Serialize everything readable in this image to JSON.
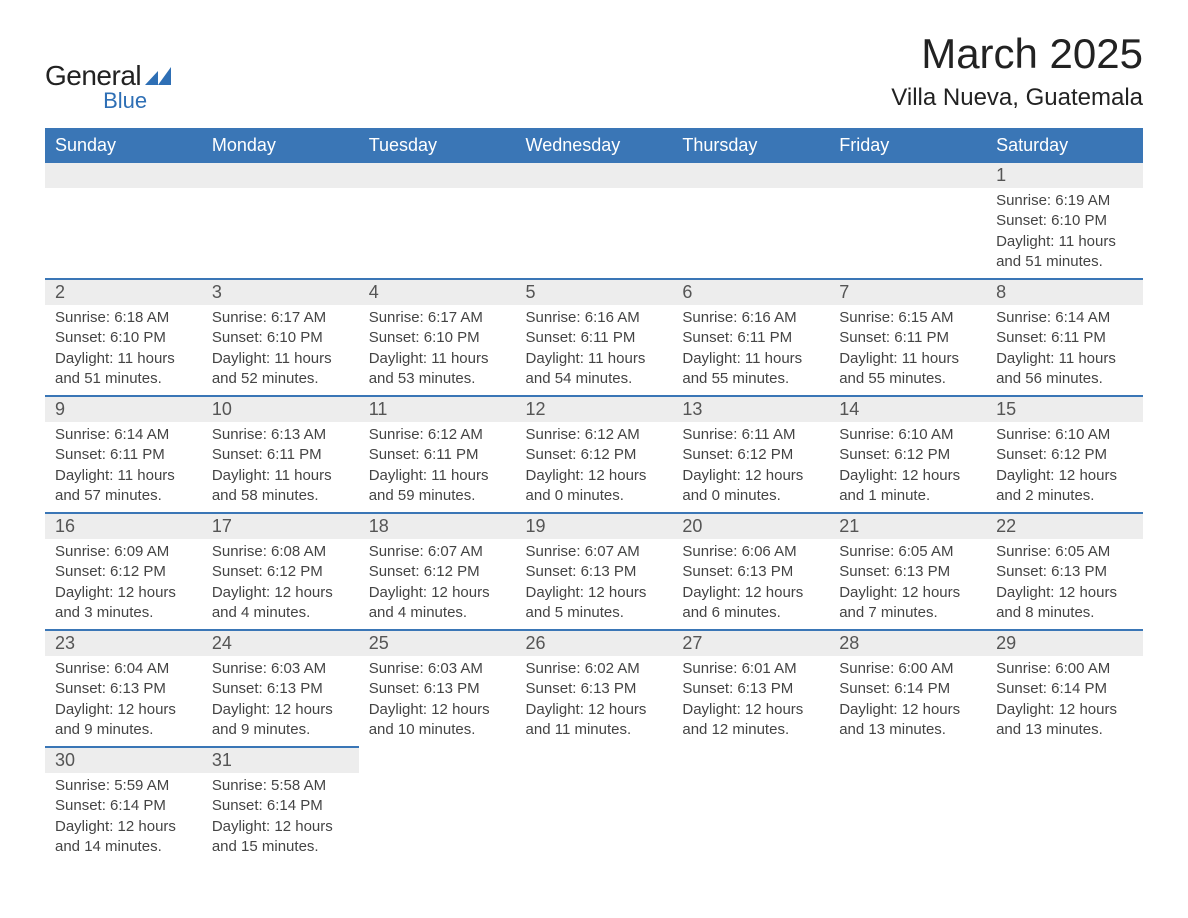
{
  "logo": {
    "text_general": "General",
    "text_blue": "Blue",
    "shape_color": "#2e6fb5"
  },
  "header": {
    "month_title": "March 2025",
    "location": "Villa Nueva, Guatemala"
  },
  "styling": {
    "header_bg": "#3a76b6",
    "header_text_color": "#ffffff",
    "daynum_bg": "#ededed",
    "row_border_color": "#3a76b6",
    "body_text_color": "#444444",
    "page_bg": "#ffffff",
    "title_fontsize": 42,
    "location_fontsize": 24,
    "header_fontsize": 18,
    "daynum_fontsize": 18,
    "detail_fontsize": 15
  },
  "columns": [
    "Sunday",
    "Monday",
    "Tuesday",
    "Wednesday",
    "Thursday",
    "Friday",
    "Saturday"
  ],
  "weeks": [
    [
      null,
      null,
      null,
      null,
      null,
      null,
      {
        "d": "1",
        "sr": "Sunrise: 6:19 AM",
        "ss": "Sunset: 6:10 PM",
        "dl": "Daylight: 11 hours and 51 minutes."
      }
    ],
    [
      {
        "d": "2",
        "sr": "Sunrise: 6:18 AM",
        "ss": "Sunset: 6:10 PM",
        "dl": "Daylight: 11 hours and 51 minutes."
      },
      {
        "d": "3",
        "sr": "Sunrise: 6:17 AM",
        "ss": "Sunset: 6:10 PM",
        "dl": "Daylight: 11 hours and 52 minutes."
      },
      {
        "d": "4",
        "sr": "Sunrise: 6:17 AM",
        "ss": "Sunset: 6:10 PM",
        "dl": "Daylight: 11 hours and 53 minutes."
      },
      {
        "d": "5",
        "sr": "Sunrise: 6:16 AM",
        "ss": "Sunset: 6:11 PM",
        "dl": "Daylight: 11 hours and 54 minutes."
      },
      {
        "d": "6",
        "sr": "Sunrise: 6:16 AM",
        "ss": "Sunset: 6:11 PM",
        "dl": "Daylight: 11 hours and 55 minutes."
      },
      {
        "d": "7",
        "sr": "Sunrise: 6:15 AM",
        "ss": "Sunset: 6:11 PM",
        "dl": "Daylight: 11 hours and 55 minutes."
      },
      {
        "d": "8",
        "sr": "Sunrise: 6:14 AM",
        "ss": "Sunset: 6:11 PM",
        "dl": "Daylight: 11 hours and 56 minutes."
      }
    ],
    [
      {
        "d": "9",
        "sr": "Sunrise: 6:14 AM",
        "ss": "Sunset: 6:11 PM",
        "dl": "Daylight: 11 hours and 57 minutes."
      },
      {
        "d": "10",
        "sr": "Sunrise: 6:13 AM",
        "ss": "Sunset: 6:11 PM",
        "dl": "Daylight: 11 hours and 58 minutes."
      },
      {
        "d": "11",
        "sr": "Sunrise: 6:12 AM",
        "ss": "Sunset: 6:11 PM",
        "dl": "Daylight: 11 hours and 59 minutes."
      },
      {
        "d": "12",
        "sr": "Sunrise: 6:12 AM",
        "ss": "Sunset: 6:12 PM",
        "dl": "Daylight: 12 hours and 0 minutes."
      },
      {
        "d": "13",
        "sr": "Sunrise: 6:11 AM",
        "ss": "Sunset: 6:12 PM",
        "dl": "Daylight: 12 hours and 0 minutes."
      },
      {
        "d": "14",
        "sr": "Sunrise: 6:10 AM",
        "ss": "Sunset: 6:12 PM",
        "dl": "Daylight: 12 hours and 1 minute."
      },
      {
        "d": "15",
        "sr": "Sunrise: 6:10 AM",
        "ss": "Sunset: 6:12 PM",
        "dl": "Daylight: 12 hours and 2 minutes."
      }
    ],
    [
      {
        "d": "16",
        "sr": "Sunrise: 6:09 AM",
        "ss": "Sunset: 6:12 PM",
        "dl": "Daylight: 12 hours and 3 minutes."
      },
      {
        "d": "17",
        "sr": "Sunrise: 6:08 AM",
        "ss": "Sunset: 6:12 PM",
        "dl": "Daylight: 12 hours and 4 minutes."
      },
      {
        "d": "18",
        "sr": "Sunrise: 6:07 AM",
        "ss": "Sunset: 6:12 PM",
        "dl": "Daylight: 12 hours and 4 minutes."
      },
      {
        "d": "19",
        "sr": "Sunrise: 6:07 AM",
        "ss": "Sunset: 6:13 PM",
        "dl": "Daylight: 12 hours and 5 minutes."
      },
      {
        "d": "20",
        "sr": "Sunrise: 6:06 AM",
        "ss": "Sunset: 6:13 PM",
        "dl": "Daylight: 12 hours and 6 minutes."
      },
      {
        "d": "21",
        "sr": "Sunrise: 6:05 AM",
        "ss": "Sunset: 6:13 PM",
        "dl": "Daylight: 12 hours and 7 minutes."
      },
      {
        "d": "22",
        "sr": "Sunrise: 6:05 AM",
        "ss": "Sunset: 6:13 PM",
        "dl": "Daylight: 12 hours and 8 minutes."
      }
    ],
    [
      {
        "d": "23",
        "sr": "Sunrise: 6:04 AM",
        "ss": "Sunset: 6:13 PM",
        "dl": "Daylight: 12 hours and 9 minutes."
      },
      {
        "d": "24",
        "sr": "Sunrise: 6:03 AM",
        "ss": "Sunset: 6:13 PM",
        "dl": "Daylight: 12 hours and 9 minutes."
      },
      {
        "d": "25",
        "sr": "Sunrise: 6:03 AM",
        "ss": "Sunset: 6:13 PM",
        "dl": "Daylight: 12 hours and 10 minutes."
      },
      {
        "d": "26",
        "sr": "Sunrise: 6:02 AM",
        "ss": "Sunset: 6:13 PM",
        "dl": "Daylight: 12 hours and 11 minutes."
      },
      {
        "d": "27",
        "sr": "Sunrise: 6:01 AM",
        "ss": "Sunset: 6:13 PM",
        "dl": "Daylight: 12 hours and 12 minutes."
      },
      {
        "d": "28",
        "sr": "Sunrise: 6:00 AM",
        "ss": "Sunset: 6:14 PM",
        "dl": "Daylight: 12 hours and 13 minutes."
      },
      {
        "d": "29",
        "sr": "Sunrise: 6:00 AM",
        "ss": "Sunset: 6:14 PM",
        "dl": "Daylight: 12 hours and 13 minutes."
      }
    ],
    [
      {
        "d": "30",
        "sr": "Sunrise: 5:59 AM",
        "ss": "Sunset: 6:14 PM",
        "dl": "Daylight: 12 hours and 14 minutes."
      },
      {
        "d": "31",
        "sr": "Sunrise: 5:58 AM",
        "ss": "Sunset: 6:14 PM",
        "dl": "Daylight: 12 hours and 15 minutes."
      },
      null,
      null,
      null,
      null,
      null
    ]
  ]
}
